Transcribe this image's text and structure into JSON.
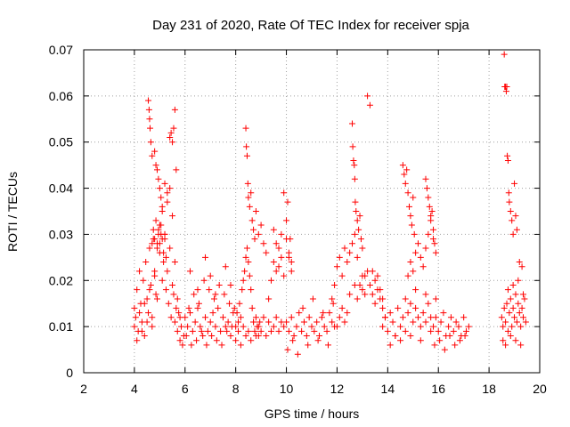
{
  "chart_data": {
    "type": "scatter",
    "title": "Day 231 of 2020, Rate Of TEC Index for receiver spja",
    "xlabel": "GPS time / hours",
    "ylabel": "ROTI / TECUs",
    "xlim": [
      2,
      20
    ],
    "ylim": [
      0,
      0.07
    ],
    "xticks": [
      2,
      4,
      6,
      8,
      10,
      12,
      14,
      16,
      18,
      20
    ],
    "xtick_labels": [
      "2",
      "4",
      "6",
      "8",
      "10",
      "12",
      "14",
      "16",
      "18",
      "20"
    ],
    "yticks": [
      0,
      0.01,
      0.02,
      0.03,
      0.04,
      0.05,
      0.06,
      0.07
    ],
    "ytick_labels": [
      "0",
      "0.01",
      "0.02",
      "0.03",
      "0.04",
      "0.05",
      "0.06",
      "0.07"
    ],
    "grid": true,
    "grid_style": "dotted",
    "marker": "+",
    "series_color": "#ff0000",
    "series": [
      {
        "x": [
          4.0,
          4.05,
          4.1,
          4.15,
          4.2,
          4.25,
          4.3,
          4.35,
          4.4,
          4.45,
          4.5,
          4.55,
          4.6,
          4.65,
          4.7,
          4.75,
          4.8,
          4.85,
          4.9,
          4.95,
          5.0,
          5.05,
          5.1,
          5.15,
          5.2,
          5.25,
          5.3,
          5.35,
          5.4,
          5.45,
          5.5,
          5.55,
          5.6,
          5.65,
          5.7,
          5.75,
          5.8,
          5.85,
          5.9,
          5.95,
          4.0,
          4.1,
          4.2,
          4.3,
          4.4,
          4.5,
          4.6,
          4.7,
          4.8,
          4.9,
          5.0,
          5.1,
          5.2,
          5.3,
          5.4,
          5.5,
          5.6,
          5.7,
          5.8,
          4.55,
          4.58,
          4.6,
          4.62,
          4.65,
          4.7,
          4.8,
          4.85,
          4.9,
          4.95,
          5.0,
          5.05,
          5.1,
          5.2,
          5.3,
          5.4,
          5.45,
          5.5,
          5.55,
          5.6,
          5.65,
          4.7,
          4.75,
          4.8,
          4.85,
          4.9,
          4.95,
          5.0,
          5.05,
          5.1,
          5.15,
          5.2,
          5.25,
          6.0,
          6.1,
          6.2,
          6.3,
          6.4,
          6.5,
          6.6,
          6.7,
          6.8,
          6.9,
          7.0,
          7.1,
          7.2,
          7.3,
          7.4,
          7.5,
          7.6,
          7.7,
          7.8,
          7.9,
          6.05,
          6.15,
          6.25,
          6.35,
          6.45,
          6.55,
          6.65,
          6.75,
          6.85,
          6.95,
          7.05,
          7.15,
          7.25,
          7.35,
          7.45,
          7.55,
          7.65,
          7.75,
          7.85,
          7.95,
          6.2,
          6.5,
          6.8,
          7.0,
          7.2,
          7.6,
          7.8,
          8.0,
          8.05,
          8.1,
          8.15,
          8.2,
          8.25,
          8.3,
          8.35,
          8.4,
          8.45,
          8.5,
          8.55,
          8.6,
          8.65,
          8.7,
          8.75,
          8.8,
          8.85,
          8.9,
          8.95,
          8.0,
          8.1,
          8.2,
          8.3,
          8.4,
          8.5,
          8.6,
          8.7,
          8.8,
          8.9,
          9.0,
          9.1,
          9.2,
          9.3,
          9.4,
          9.5,
          9.6,
          9.7,
          9.8,
          9.9,
          8.4,
          8.42,
          8.45,
          8.48,
          8.5,
          8.55,
          8.6,
          8.65,
          8.7,
          8.75,
          8.8,
          8.9,
          9.0,
          9.1,
          9.2,
          9.3,
          9.4,
          9.5,
          9.6,
          9.7,
          9.8,
          9.9,
          10.0,
          10.1,
          10.2,
          9.5,
          9.6,
          9.7,
          9.8,
          9.9,
          10.0,
          10.05,
          10.1,
          10.15,
          10.2,
          10.0,
          10.1,
          10.2,
          10.3,
          10.4,
          10.5,
          10.6,
          10.7,
          10.8,
          10.9,
          11.0,
          11.1,
          11.2,
          11.3,
          11.4,
          11.5,
          11.6,
          11.7,
          11.8,
          11.9,
          10.05,
          10.25,
          10.45,
          10.65,
          10.85,
          11.05,
          11.25,
          11.45,
          11.65,
          11.85,
          11.8,
          11.9,
          12.0,
          12.1,
          12.2,
          12.3,
          12.4,
          12.5,
          12.6,
          12.7,
          12.8,
          12.9,
          13.0,
          13.1,
          12.6,
          12.62,
          12.65,
          12.68,
          12.7,
          12.72,
          12.75,
          12.8,
          12.85,
          12.9,
          12.95,
          13.0,
          12.0,
          12.1,
          12.2,
          12.3,
          12.4,
          12.5,
          12.7,
          12.8,
          13.0,
          13.1,
          13.2,
          13.3,
          13.4,
          13.5,
          13.6,
          13.7,
          13.8,
          13.9,
          13.2,
          13.3,
          13.4,
          13.5,
          13.6,
          13.7,
          13.8,
          13.8,
          13.9,
          14.0,
          14.1,
          14.2,
          14.3,
          14.4,
          14.5,
          14.6,
          14.7,
          14.8,
          14.9,
          15.0,
          15.1,
          15.2,
          15.3,
          15.4,
          15.5,
          15.6,
          15.7,
          14.1,
          14.3,
          14.5,
          14.7,
          14.9,
          15.1,
          15.3,
          15.5,
          15.7,
          15.9,
          14.6,
          14.65,
          14.7,
          14.75,
          14.8,
          14.85,
          14.9,
          14.95,
          15.0,
          15.05,
          14.8,
          14.9,
          15.0,
          15.1,
          15.2,
          15.3,
          15.4,
          15.5,
          15.6,
          15.7,
          15.8,
          15.9,
          15.5,
          15.55,
          15.6,
          15.65,
          15.7,
          15.75,
          15.8,
          15.85,
          15.8,
          15.9,
          16.0,
          16.1,
          16.2,
          16.3,
          16.4,
          16.5,
          16.6,
          16.7,
          16.8,
          16.9,
          17.0,
          17.1,
          17.2,
          15.85,
          16.05,
          16.25,
          16.45,
          16.65,
          16.85,
          17.05,
          18.5,
          18.55,
          18.6,
          18.65,
          18.7,
          18.75,
          18.8,
          18.85,
          18.9,
          18.95,
          19.0,
          19.05,
          19.1,
          19.15,
          19.2,
          19.25,
          19.3,
          19.35,
          19.4,
          19.45,
          18.55,
          18.65,
          18.75,
          18.85,
          18.95,
          19.05,
          19.15,
          19.25,
          19.35,
          18.6,
          18.62,
          18.65,
          18.68,
          18.7,
          18.72,
          18.75,
          18.78,
          18.8,
          18.85,
          18.9,
          18.95,
          19.0,
          19.05,
          19.1,
          19.2,
          19.3
        ],
        "y": [
          0.014,
          0.012,
          0.018,
          0.009,
          0.022,
          0.015,
          0.011,
          0.02,
          0.008,
          0.024,
          0.016,
          0.013,
          0.027,
          0.019,
          0.01,
          0.029,
          0.022,
          0.017,
          0.028,
          0.031,
          0.026,
          0.03,
          0.02,
          0.024,
          0.029,
          0.018,
          0.022,
          0.015,
          0.027,
          0.012,
          0.019,
          0.017,
          0.011,
          0.014,
          0.009,
          0.013,
          0.007,
          0.01,
          0.006,
          0.008,
          0.01,
          0.007,
          0.013,
          0.009,
          0.015,
          0.011,
          0.018,
          0.012,
          0.021,
          0.016,
          0.032,
          0.035,
          0.03,
          0.037,
          0.04,
          0.034,
          0.024,
          0.016,
          0.012,
          0.059,
          0.057,
          0.055,
          0.053,
          0.05,
          0.047,
          0.048,
          0.045,
          0.044,
          0.042,
          0.04,
          0.038,
          0.036,
          0.041,
          0.039,
          0.051,
          0.052,
          0.05,
          0.053,
          0.057,
          0.044,
          0.028,
          0.031,
          0.029,
          0.033,
          0.027,
          0.03,
          0.028,
          0.032,
          0.029,
          0.026,
          0.03,
          0.025,
          0.012,
          0.01,
          0.013,
          0.009,
          0.011,
          0.014,
          0.01,
          0.008,
          0.012,
          0.009,
          0.011,
          0.013,
          0.01,
          0.014,
          0.009,
          0.012,
          0.01,
          0.011,
          0.008,
          0.013,
          0.008,
          0.014,
          0.006,
          0.017,
          0.007,
          0.015,
          0.009,
          0.02,
          0.006,
          0.018,
          0.008,
          0.016,
          0.007,
          0.019,
          0.006,
          0.017,
          0.009,
          0.015,
          0.01,
          0.014,
          0.022,
          0.018,
          0.025,
          0.021,
          0.017,
          0.023,
          0.019,
          0.01,
          0.013,
          0.011,
          0.015,
          0.012,
          0.018,
          0.02,
          0.022,
          0.025,
          0.027,
          0.024,
          0.021,
          0.018,
          0.014,
          0.011,
          0.009,
          0.012,
          0.01,
          0.008,
          0.011,
          0.007,
          0.009,
          0.006,
          0.01,
          0.008,
          0.009,
          0.007,
          0.011,
          0.008,
          0.01,
          0.009,
          0.012,
          0.008,
          0.011,
          0.009,
          0.01,
          0.012,
          0.009,
          0.011,
          0.01,
          0.053,
          0.049,
          0.047,
          0.041,
          0.038,
          0.036,
          0.039,
          0.033,
          0.031,
          0.029,
          0.035,
          0.03,
          0.032,
          0.028,
          0.026,
          0.016,
          0.02,
          0.024,
          0.022,
          0.027,
          0.025,
          0.021,
          0.029,
          0.026,
          0.024,
          0.031,
          0.028,
          0.023,
          0.03,
          0.039,
          0.033,
          0.037,
          0.025,
          0.029,
          0.022,
          0.011,
          0.009,
          0.012,
          0.008,
          0.01,
          0.013,
          0.009,
          0.011,
          0.008,
          0.012,
          0.01,
          0.009,
          0.011,
          0.008,
          0.012,
          0.01,
          0.009,
          0.013,
          0.011,
          0.01,
          0.005,
          0.007,
          0.004,
          0.014,
          0.006,
          0.016,
          0.007,
          0.013,
          0.006,
          0.015,
          0.016,
          0.019,
          0.023,
          0.025,
          0.021,
          0.027,
          0.024,
          0.026,
          0.028,
          0.03,
          0.025,
          0.019,
          0.021,
          0.017,
          0.054,
          0.049,
          0.046,
          0.045,
          0.042,
          0.037,
          0.035,
          0.033,
          0.031,
          0.034,
          0.029,
          0.027,
          0.01,
          0.012,
          0.014,
          0.011,
          0.013,
          0.017,
          0.019,
          0.016,
          0.018,
          0.021,
          0.022,
          0.019,
          0.017,
          0.015,
          0.018,
          0.016,
          0.014,
          0.012,
          0.06,
          0.058,
          0.022,
          0.02,
          0.021,
          0.018,
          0.016,
          0.01,
          0.012,
          0.009,
          0.013,
          0.011,
          0.008,
          0.014,
          0.01,
          0.012,
          0.009,
          0.013,
          0.015,
          0.011,
          0.014,
          0.012,
          0.01,
          0.013,
          0.011,
          0.015,
          0.012,
          0.006,
          0.008,
          0.007,
          0.016,
          0.008,
          0.018,
          0.007,
          0.017,
          0.009,
          0.016,
          0.045,
          0.043,
          0.041,
          0.044,
          0.039,
          0.036,
          0.034,
          0.032,
          0.038,
          0.03,
          0.021,
          0.024,
          0.022,
          0.026,
          0.028,
          0.025,
          0.023,
          0.027,
          0.03,
          0.033,
          0.029,
          0.026,
          0.042,
          0.04,
          0.038,
          0.036,
          0.034,
          0.035,
          0.031,
          0.028,
          0.01,
          0.012,
          0.009,
          0.011,
          0.013,
          0.008,
          0.01,
          0.012,
          0.009,
          0.011,
          0.01,
          0.008,
          0.012,
          0.009,
          0.01,
          0.006,
          0.007,
          0.005,
          0.008,
          0.006,
          0.007,
          0.008,
          0.012,
          0.01,
          0.014,
          0.011,
          0.015,
          0.009,
          0.013,
          0.016,
          0.01,
          0.014,
          0.012,
          0.017,
          0.011,
          0.015,
          0.013,
          0.01,
          0.014,
          0.012,
          0.016,
          0.011,
          0.007,
          0.006,
          0.018,
          0.008,
          0.019,
          0.007,
          0.02,
          0.006,
          0.017,
          0.069,
          0.062,
          0.062,
          0.061,
          0.062,
          0.047,
          0.046,
          0.039,
          0.037,
          0.035,
          0.033,
          0.03,
          0.041,
          0.034,
          0.031,
          0.024,
          0.023
        ]
      }
    ]
  }
}
